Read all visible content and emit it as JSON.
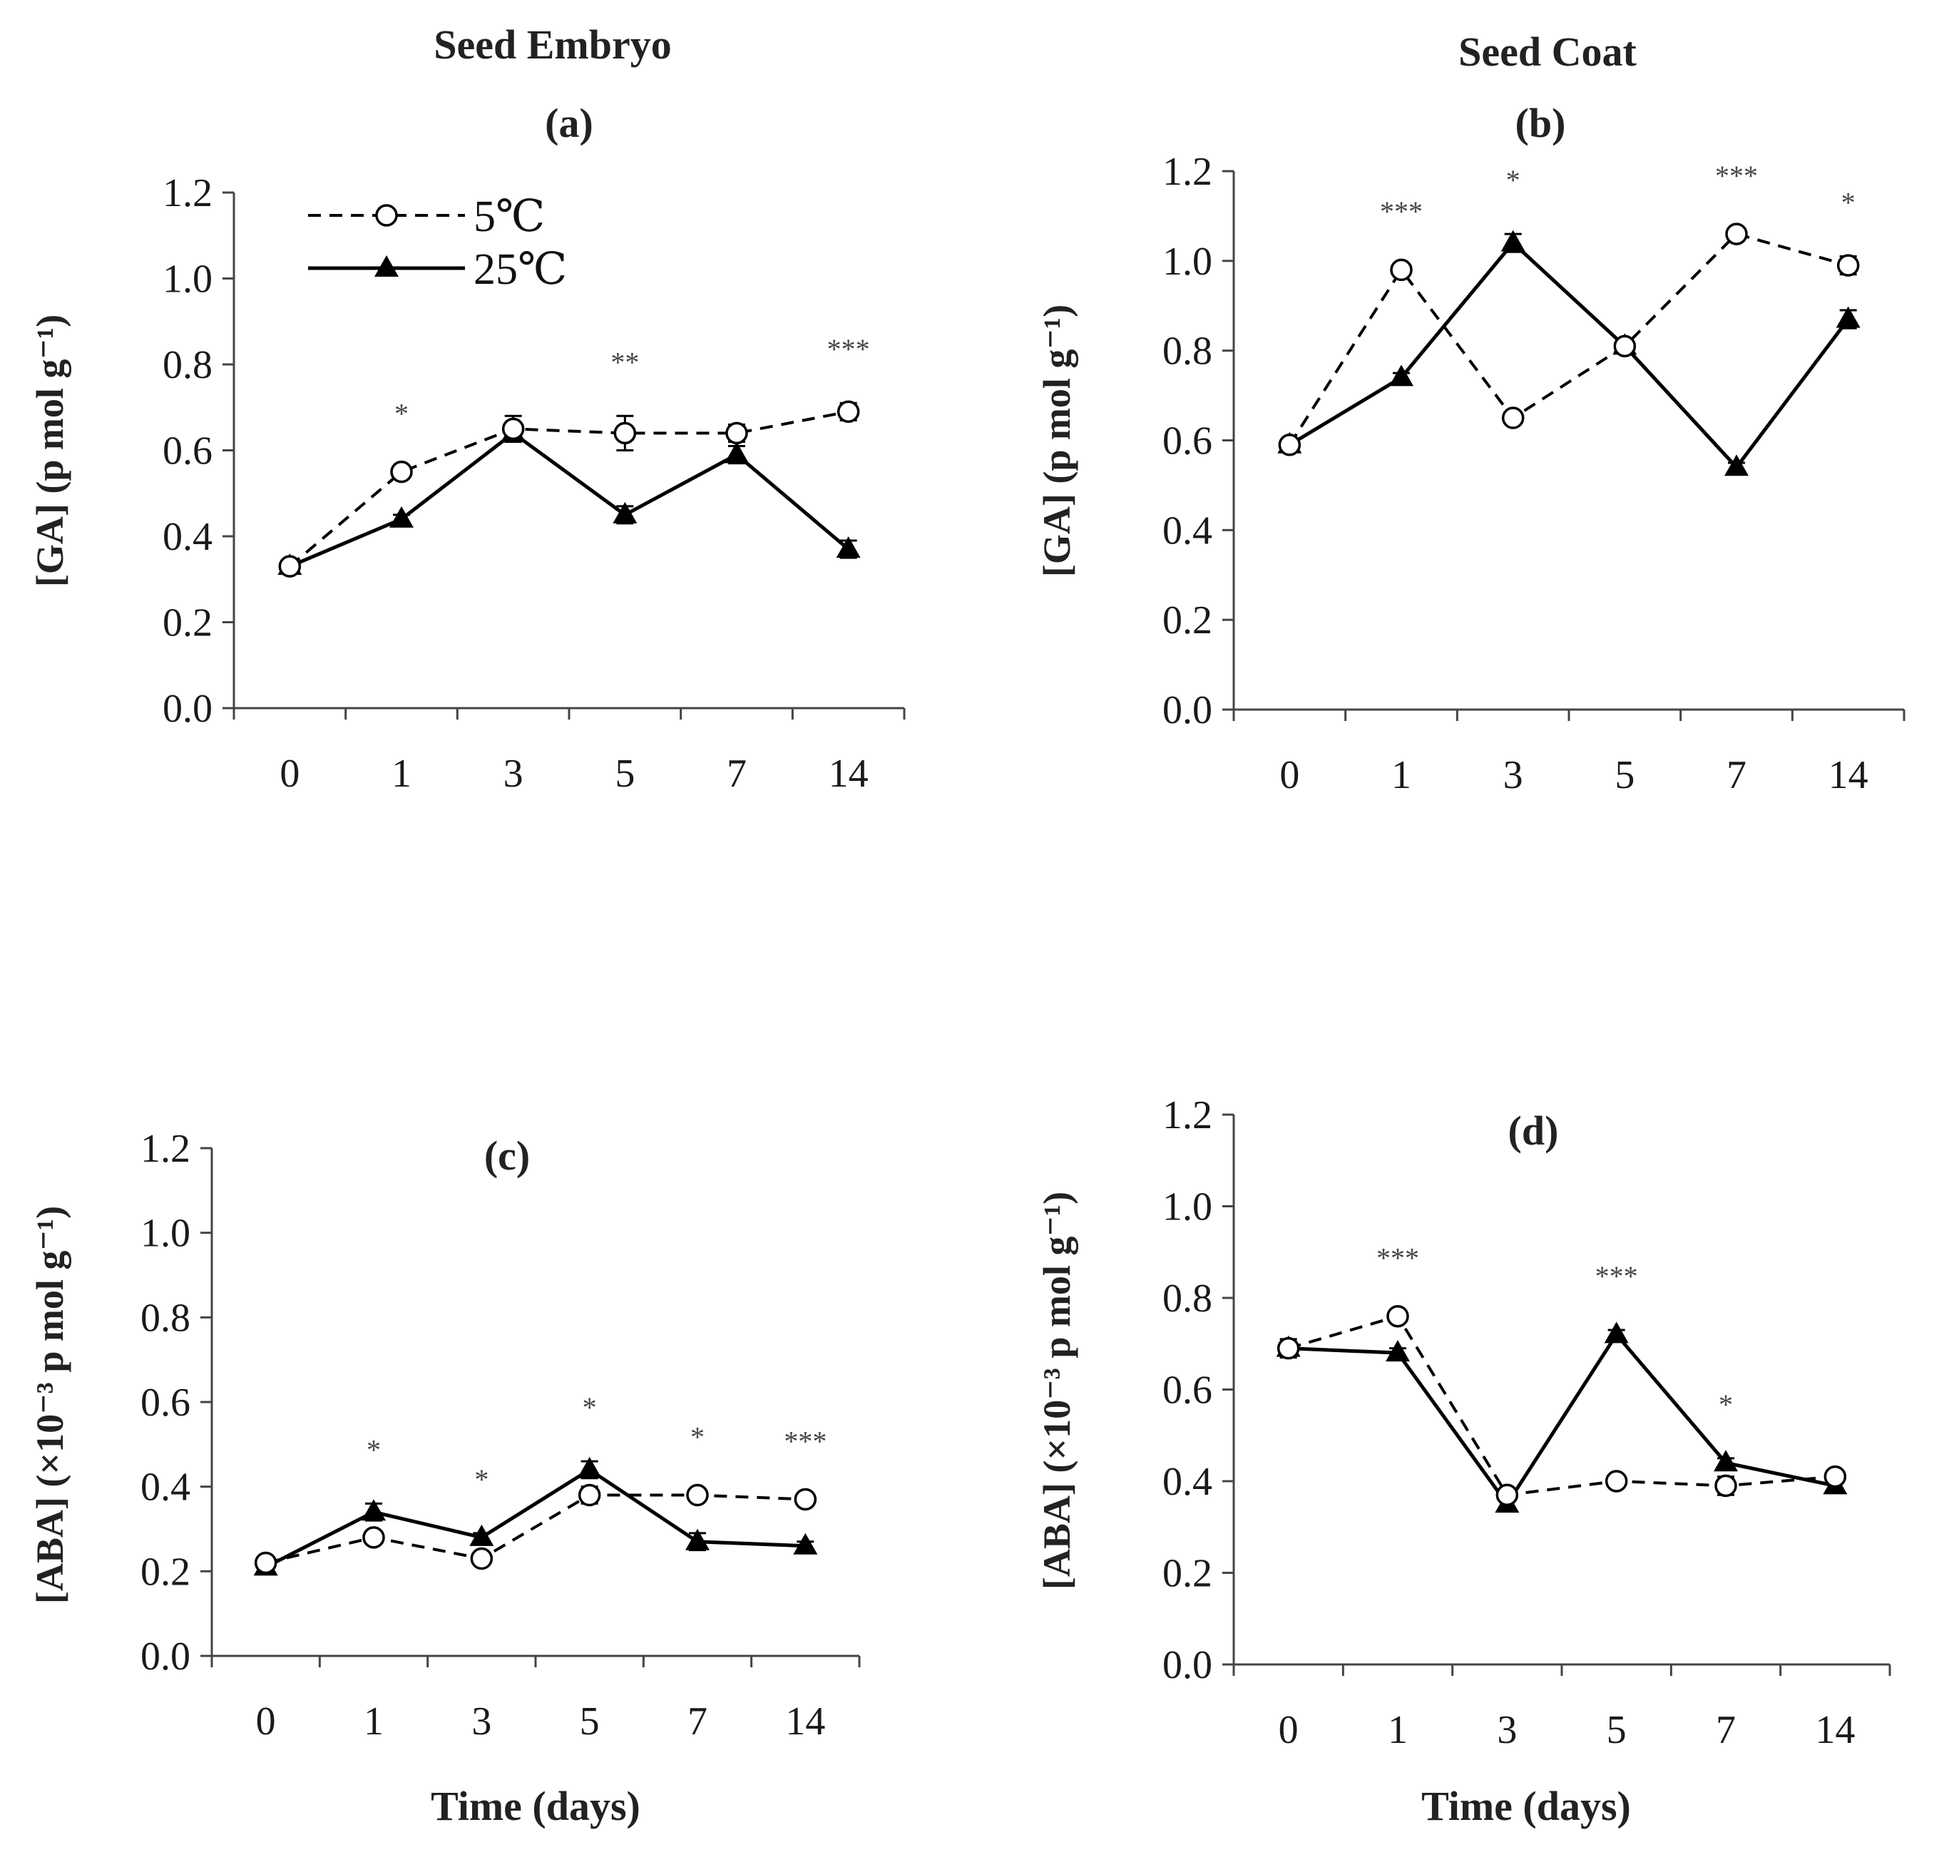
{
  "figure": {
    "column_titles": [
      "Seed Embryo",
      "Seed Coat"
    ],
    "legend": [
      {
        "label": "5℃",
        "style": "dashed",
        "marker": "open-circle"
      },
      {
        "label": "25℃",
        "style": "solid",
        "marker": "filled-triangle"
      }
    ]
  },
  "chart_data": [
    {
      "type": "line",
      "panel": "(a)",
      "title": "Seed Embryo",
      "categories": [
        "0",
        "1",
        "3",
        "5",
        "7",
        "14"
      ],
      "xlabel": "",
      "ylabel": "[GA]  (p mol g⁻¹)",
      "ylim": [
        0,
        1.2
      ],
      "yticks": [
        "0.0",
        "0.2",
        "0.4",
        "0.6",
        "0.8",
        "1.0",
        "1.2"
      ],
      "series": [
        {
          "name": "5℃",
          "values": [
            0.33,
            0.55,
            0.65,
            0.64,
            0.64,
            0.69
          ],
          "errors": [
            0.01,
            0.01,
            0.03,
            0.04,
            0.02,
            0.02
          ]
        },
        {
          "name": "25℃",
          "values": [
            0.33,
            0.44,
            0.64,
            0.45,
            0.59,
            0.37
          ],
          "errors": [
            0.01,
            0.01,
            0.02,
            0.02,
            0.02,
            0.02
          ]
        }
      ],
      "significance": [
        "",
        "*",
        "",
        "**",
        "",
        "***"
      ]
    },
    {
      "type": "line",
      "panel": "(b)",
      "title": "Seed Coat",
      "categories": [
        "0",
        "1",
        "3",
        "5",
        "7",
        "14"
      ],
      "xlabel": "",
      "ylabel": "[GA]  (p mol g⁻¹)",
      "ylim": [
        0,
        1.2
      ],
      "yticks": [
        "0.0",
        "0.2",
        "0.4",
        "0.6",
        "0.8",
        "1.0",
        "1.2"
      ],
      "series": [
        {
          "name": "5℃",
          "values": [
            0.59,
            0.98,
            0.65,
            0.81,
            1.06,
            0.99
          ],
          "errors": [
            0.01,
            0.01,
            0.01,
            0.01,
            0.01,
            0.02
          ]
        },
        {
          "name": "25℃",
          "values": [
            0.59,
            0.74,
            1.04,
            0.81,
            0.54,
            0.87
          ],
          "errors": [
            0.01,
            0.01,
            0.02,
            0.01,
            0.01,
            0.02
          ]
        }
      ],
      "significance": [
        "",
        "***",
        "*",
        "",
        "***",
        "*"
      ]
    },
    {
      "type": "line",
      "panel": "(c)",
      "title": "",
      "categories": [
        "0",
        "1",
        "3",
        "5",
        "7",
        "14"
      ],
      "xlabel": "Time (days)",
      "ylabel": "[ABA] (×10⁻³ p mol g⁻¹)",
      "ylim": [
        0,
        1.2
      ],
      "yticks": [
        "0.0",
        "0.2",
        "0.4",
        "0.6",
        "0.8",
        "1.0",
        "1.2"
      ],
      "series": [
        {
          "name": "5℃",
          "values": [
            0.22,
            0.28,
            0.23,
            0.38,
            0.38,
            0.37
          ],
          "errors": [
            0.01,
            0.01,
            0.01,
            0.02,
            0.01,
            0.01
          ]
        },
        {
          "name": "25℃",
          "values": [
            0.21,
            0.34,
            0.28,
            0.44,
            0.27,
            0.26
          ],
          "errors": [
            0.01,
            0.02,
            0.01,
            0.02,
            0.02,
            0.01
          ]
        }
      ],
      "significance": [
        "",
        "*",
        "*",
        "*",
        "*",
        "***"
      ]
    },
    {
      "type": "line",
      "panel": "(d)",
      "title": "",
      "categories": [
        "0",
        "1",
        "3",
        "5",
        "7",
        "14"
      ],
      "xlabel": "Time (days)",
      "ylabel": "[ABA] (×10⁻³ p mol g⁻¹)",
      "ylim": [
        0,
        1.2
      ],
      "yticks": [
        "0.0",
        "0.2",
        "0.4",
        "0.6",
        "0.8",
        "1.0",
        "1.2"
      ],
      "series": [
        {
          "name": "5℃",
          "values": [
            0.69,
            0.76,
            0.37,
            0.4,
            0.39,
            0.41
          ],
          "errors": [
            0.02,
            0.01,
            0.01,
            0.01,
            0.02,
            0.01
          ]
        },
        {
          "name": "25℃",
          "values": [
            0.69,
            0.68,
            0.35,
            0.72,
            0.44,
            0.39
          ],
          "errors": [
            0.01,
            0.01,
            0.01,
            0.01,
            0.01,
            0.01
          ]
        }
      ],
      "significance": [
        "",
        "***",
        "",
        "***",
        "*",
        ""
      ]
    }
  ]
}
